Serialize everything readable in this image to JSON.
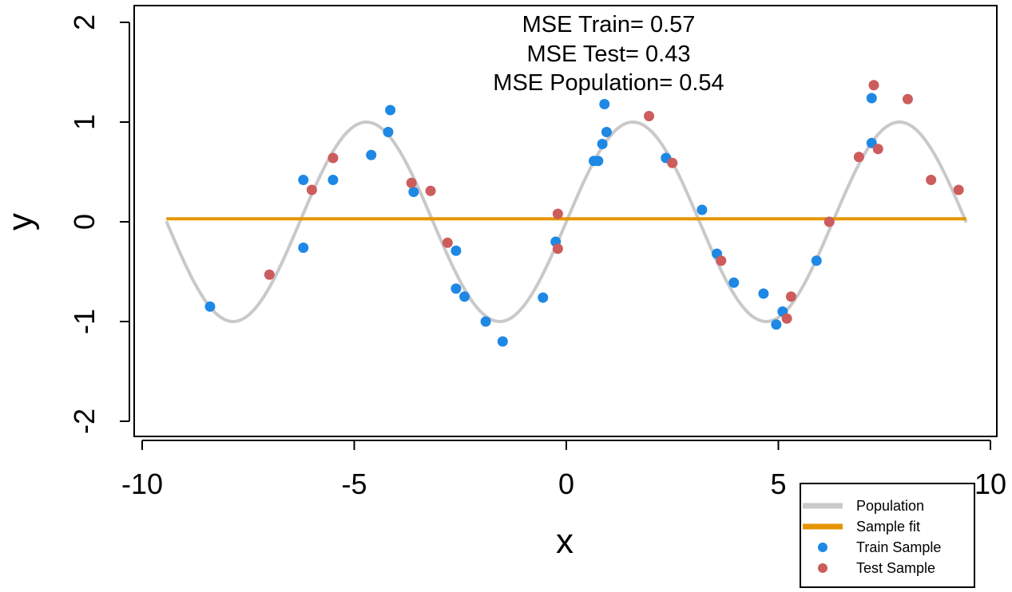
{
  "chart_data": {
    "type": "scatter",
    "title": "",
    "xlabel": "x",
    "ylabel": "y",
    "xlim": [
      -10,
      10
    ],
    "ylim": [
      -2,
      2
    ],
    "x_ticks": [
      -10,
      -5,
      0,
      5,
      10
    ],
    "y_ticks": [
      -2,
      -1,
      0,
      1,
      2
    ],
    "x_tick_labels": [
      "-10",
      "-5",
      "0",
      "5",
      "10"
    ],
    "y_tick_labels": [
      "-2",
      "-1",
      "0",
      "1",
      "2"
    ],
    "annotations": [
      "MSE Train= 0.57",
      "MSE Test= 0.43",
      "MSE Population= 0.54"
    ],
    "legend": {
      "position": "bottom-right",
      "entries": [
        {
          "label": "Population",
          "kind": "line",
          "color": "#c9c9c9"
        },
        {
          "label": "Sample fit",
          "kind": "line",
          "color": "#e69500"
        },
        {
          "label": "Train Sample",
          "kind": "point",
          "color": "#1e88e5"
        },
        {
          "label": "Test Sample",
          "kind": "point",
          "color": "#cd5c5c"
        }
      ]
    },
    "series": [
      {
        "name": "Population",
        "kind": "line",
        "color": "#c9c9c9",
        "function": "sin(x)",
        "x_range": [
          -9.43,
          9.43
        ]
      },
      {
        "name": "Sample fit",
        "kind": "line",
        "color": "#e69500",
        "x": [
          -9.43,
          9.43
        ],
        "y": [
          0.03,
          0.03
        ]
      },
      {
        "name": "Train Sample",
        "kind": "point",
        "color": "#1e88e5",
        "points": [
          [
            -8.4,
            -0.85
          ],
          [
            -6.2,
            0.42
          ],
          [
            -6.2,
            -0.26
          ],
          [
            -5.5,
            0.42
          ],
          [
            -4.6,
            0.67
          ],
          [
            -4.2,
            0.9
          ],
          [
            -4.15,
            1.12
          ],
          [
            -3.6,
            0.3
          ],
          [
            -2.6,
            -0.29
          ],
          [
            -2.6,
            -0.67
          ],
          [
            -2.4,
            -0.75
          ],
          [
            -1.9,
            -1.0
          ],
          [
            -1.5,
            -1.2
          ],
          [
            -0.55,
            -0.76
          ],
          [
            -0.25,
            -0.2
          ],
          [
            0.65,
            0.61
          ],
          [
            0.75,
            0.61
          ],
          [
            0.85,
            0.78
          ],
          [
            0.9,
            1.18
          ],
          [
            0.95,
            0.9
          ],
          [
            2.35,
            0.64
          ],
          [
            3.2,
            0.12
          ],
          [
            3.55,
            -0.32
          ],
          [
            3.95,
            -0.61
          ],
          [
            4.65,
            -0.72
          ],
          [
            4.95,
            -1.03
          ],
          [
            5.1,
            -0.9
          ],
          [
            5.9,
            -0.39
          ],
          [
            7.2,
            0.79
          ],
          [
            7.2,
            1.24
          ]
        ]
      },
      {
        "name": "Test Sample",
        "kind": "point",
        "color": "#cd5c5c",
        "points": [
          [
            -7.0,
            -0.53
          ],
          [
            -6.0,
            0.32
          ],
          [
            -5.5,
            0.64
          ],
          [
            -3.65,
            0.39
          ],
          [
            -3.2,
            0.31
          ],
          [
            -2.8,
            -0.21
          ],
          [
            -0.2,
            0.08
          ],
          [
            -0.2,
            -0.27
          ],
          [
            1.95,
            1.06
          ],
          [
            2.5,
            0.59
          ],
          [
            3.65,
            -0.39
          ],
          [
            5.2,
            -0.97
          ],
          [
            5.3,
            -0.75
          ],
          [
            6.2,
            0.0
          ],
          [
            6.9,
            0.65
          ],
          [
            7.25,
            1.37
          ],
          [
            7.35,
            0.73
          ],
          [
            8.05,
            1.23
          ],
          [
            8.6,
            0.42
          ],
          [
            9.25,
            0.32
          ]
        ]
      }
    ]
  }
}
